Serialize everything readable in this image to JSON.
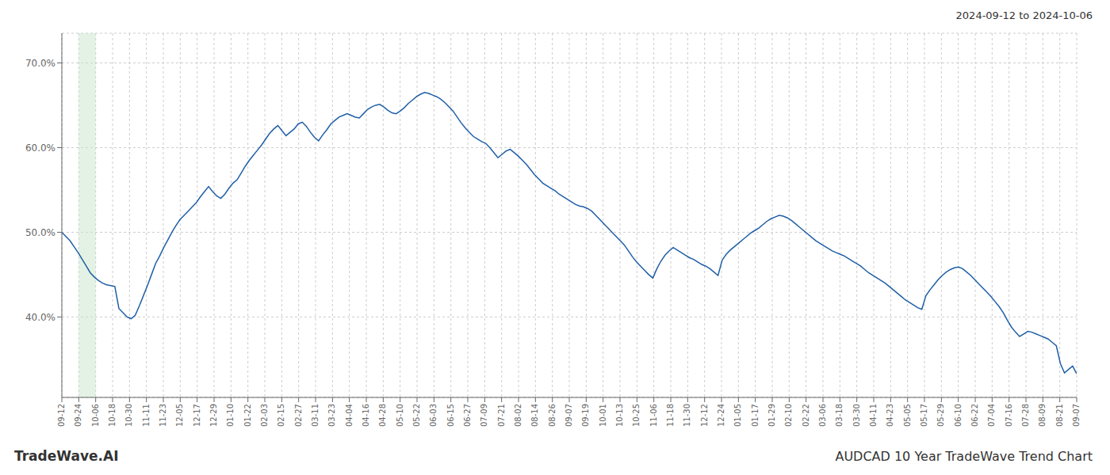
{
  "chart_data": {
    "type": "line",
    "title": "AUDCAD 10 Year TradeWave Trend Chart",
    "subtitle": "2024-09-12 to 2024-10-06",
    "annotations": [
      "TradeWave.AI"
    ],
    "color": "#1f5fa6",
    "grid": true,
    "highlight": {
      "x": [
        4.15,
        8.3
      ],
      "color": "#c8e6c9"
    },
    "xlim": [
      0,
      249
    ],
    "xticks": [
      {
        "value": 0,
        "label": "09-12"
      },
      {
        "value": 4.15,
        "label": "09-24"
      },
      {
        "value": 8.3,
        "label": "10-06"
      },
      {
        "value": 12.45,
        "label": "10-18"
      },
      {
        "value": 16.6,
        "label": "10-30"
      },
      {
        "value": 20.75,
        "label": "11-11"
      },
      {
        "value": 24.9,
        "label": "11-23"
      },
      {
        "value": 29.05,
        "label": "12-05"
      },
      {
        "value": 33.2,
        "label": "12-17"
      },
      {
        "value": 37.35,
        "label": "12-29"
      },
      {
        "value": 41.5,
        "label": "01-10"
      },
      {
        "value": 45.65,
        "label": "01-22"
      },
      {
        "value": 49.8,
        "label": "02-03"
      },
      {
        "value": 53.95,
        "label": "02-15"
      },
      {
        "value": 58.1,
        "label": "02-27"
      },
      {
        "value": 62.25,
        "label": "03-11"
      },
      {
        "value": 66.4,
        "label": "03-23"
      },
      {
        "value": 70.55,
        "label": "04-04"
      },
      {
        "value": 74.7,
        "label": "04-16"
      },
      {
        "value": 78.85,
        "label": "04-28"
      },
      {
        "value": 83,
        "label": "05-10"
      },
      {
        "value": 87.15,
        "label": "05-22"
      },
      {
        "value": 91.3,
        "label": "06-03"
      },
      {
        "value": 95.45,
        "label": "06-15"
      },
      {
        "value": 99.6,
        "label": "06-27"
      },
      {
        "value": 103.75,
        "label": "07-09"
      },
      {
        "value": 107.9,
        "label": "07-21"
      },
      {
        "value": 112.05,
        "label": "08-02"
      },
      {
        "value": 116.2,
        "label": "08-14"
      },
      {
        "value": 120.35,
        "label": "08-26"
      },
      {
        "value": 124.5,
        "label": "09-07"
      },
      {
        "value": 128.65,
        "label": "09-19"
      },
      {
        "value": 132.8,
        "label": "10-01"
      },
      {
        "value": 136.95,
        "label": "10-13"
      },
      {
        "value": 141.1,
        "label": "10-25"
      },
      {
        "value": 145.25,
        "label": "11-06"
      },
      {
        "value": 149.4,
        "label": "11-18"
      },
      {
        "value": 153.55,
        "label": "11-30"
      },
      {
        "value": 157.7,
        "label": "12-12"
      },
      {
        "value": 161.85,
        "label": "12-24"
      },
      {
        "value": 166,
        "label": "01-05"
      },
      {
        "value": 170.15,
        "label": "01-17"
      },
      {
        "value": 174.3,
        "label": "01-29"
      },
      {
        "value": 178.45,
        "label": "02-10"
      },
      {
        "value": 182.6,
        "label": "02-22"
      },
      {
        "value": 186.75,
        "label": "03-06"
      },
      {
        "value": 190.9,
        "label": "03-18"
      },
      {
        "value": 195.05,
        "label": "03-30"
      },
      {
        "value": 199.2,
        "label": "04-11"
      },
      {
        "value": 203.35,
        "label": "04-23"
      },
      {
        "value": 207.5,
        "label": "05-05"
      },
      {
        "value": 211.65,
        "label": "05-17"
      },
      {
        "value": 215.8,
        "label": "05-29"
      },
      {
        "value": 219.95,
        "label": "06-10"
      },
      {
        "value": 224.1,
        "label": "06-22"
      },
      {
        "value": 228.25,
        "label": "07-04"
      },
      {
        "value": 232.4,
        "label": "07-16"
      },
      {
        "value": 236.55,
        "label": "07-28"
      },
      {
        "value": 240.7,
        "label": "08-09"
      },
      {
        "value": 244.85,
        "label": "08-21"
      },
      {
        "value": 249,
        "label": "09-07"
      }
    ],
    "ylim": [
      0.305,
      0.735
    ],
    "yticks": [
      {
        "value": 0.4,
        "label": "40.0%"
      },
      {
        "value": 0.5,
        "label": "50.0%"
      },
      {
        "value": 0.6,
        "label": "60.0%"
      },
      {
        "value": 0.7,
        "label": "70.0%"
      }
    ],
    "x": [
      0,
      1,
      2,
      3,
      4,
      5,
      6,
      7,
      8,
      9,
      10,
      11,
      12,
      13,
      14,
      15,
      16,
      17,
      18,
      19,
      20,
      21,
      22,
      23,
      24,
      25,
      26,
      27,
      28,
      29,
      30,
      31,
      32,
      33,
      34,
      35,
      36,
      37,
      38,
      39,
      40,
      41,
      42,
      43,
      44,
      45,
      46,
      47,
      48,
      49,
      50,
      51,
      52,
      53,
      54,
      55,
      56,
      57,
      58,
      59,
      60,
      61,
      62,
      63,
      64,
      65,
      66,
      67,
      68,
      69,
      70,
      71,
      72,
      73,
      74,
      75,
      76,
      77,
      78,
      79,
      80,
      81,
      82,
      83,
      84,
      85,
      86,
      87,
      88,
      89,
      90,
      91,
      92,
      93,
      94,
      95,
      96,
      97,
      98,
      99,
      100,
      101,
      102,
      103,
      104,
      105,
      106,
      107,
      108,
      109,
      110,
      111,
      112,
      113,
      114,
      115,
      116,
      117,
      118,
      119,
      120,
      121,
      122,
      123,
      124,
      125,
      126,
      127,
      128,
      129,
      130,
      131,
      132,
      133,
      134,
      135,
      136,
      137,
      138,
      139,
      140,
      141,
      142,
      143,
      144,
      145,
      146,
      147,
      148,
      149,
      150,
      151,
      152,
      153,
      154,
      155,
      156,
      157,
      158,
      159,
      160,
      161,
      162,
      163,
      164,
      165,
      166,
      167,
      168,
      169,
      170,
      171,
      172,
      173,
      174,
      175,
      176,
      177,
      178,
      179,
      180,
      181,
      182,
      183,
      184,
      185,
      186,
      187,
      188,
      189,
      190,
      191,
      192,
      193,
      194,
      195,
      196,
      197,
      198,
      199,
      200,
      201,
      202,
      203,
      204,
      205,
      206,
      207,
      208,
      209,
      210,
      211,
      212,
      213,
      214,
      215,
      216,
      217,
      218,
      219,
      220,
      221,
      222,
      223,
      224,
      225,
      226,
      227,
      228,
      229,
      230,
      231,
      232,
      233,
      234,
      235,
      236,
      237,
      238,
      239,
      240,
      241,
      242,
      243,
      244,
      245,
      246,
      247,
      248,
      249
    ],
    "values": [
      0.5,
      0.495,
      0.49,
      0.483,
      0.476,
      0.468,
      0.46,
      0.452,
      0.447,
      0.443,
      0.44,
      0.438,
      0.437,
      0.436,
      0.41,
      0.405,
      0.4,
      0.398,
      0.402,
      0.413,
      0.425,
      0.437,
      0.45,
      0.463,
      0.472,
      0.482,
      0.491,
      0.5,
      0.508,
      0.515,
      0.52,
      0.525,
      0.53,
      0.535,
      0.542,
      0.548,
      0.554,
      0.548,
      0.543,
      0.54,
      0.545,
      0.552,
      0.558,
      0.562,
      0.57,
      0.578,
      0.585,
      0.591,
      0.597,
      0.603,
      0.61,
      0.617,
      0.622,
      0.626,
      0.62,
      0.614,
      0.618,
      0.622,
      0.628,
      0.63,
      0.625,
      0.618,
      0.612,
      0.608,
      0.615,
      0.621,
      0.628,
      0.632,
      0.636,
      0.638,
      0.64,
      0.638,
      0.636,
      0.635,
      0.64,
      0.645,
      0.648,
      0.65,
      0.651,
      0.648,
      0.644,
      0.641,
      0.64,
      0.643,
      0.647,
      0.652,
      0.656,
      0.66,
      0.663,
      0.665,
      0.664,
      0.662,
      0.66,
      0.657,
      0.653,
      0.648,
      0.643,
      0.636,
      0.629,
      0.623,
      0.618,
      0.613,
      0.61,
      0.607,
      0.605,
      0.6,
      0.594,
      0.588,
      0.592,
      0.596,
      0.598,
      0.594,
      0.59,
      0.585,
      0.58,
      0.574,
      0.568,
      0.563,
      0.558,
      0.555,
      0.552,
      0.549,
      0.545,
      0.542,
      0.539,
      0.536,
      0.533,
      0.531,
      0.53,
      0.528,
      0.525,
      0.52,
      0.515,
      0.51,
      0.505,
      0.5,
      0.495,
      0.49,
      0.485,
      0.478,
      0.471,
      0.465,
      0.46,
      0.455,
      0.45,
      0.446,
      0.457,
      0.466,
      0.473,
      0.478,
      0.482,
      0.479,
      0.476,
      0.473,
      0.47,
      0.468,
      0.465,
      0.462,
      0.46,
      0.457,
      0.453,
      0.449,
      0.467,
      0.474,
      0.479,
      0.483,
      0.487,
      0.491,
      0.495,
      0.499,
      0.502,
      0.505,
      0.509,
      0.513,
      0.516,
      0.518,
      0.52,
      0.519,
      0.517,
      0.514,
      0.51,
      0.506,
      0.502,
      0.498,
      0.494,
      0.49,
      0.487,
      0.484,
      0.481,
      0.478,
      0.476,
      0.474,
      0.472,
      0.469,
      0.466,
      0.463,
      0.46,
      0.456,
      0.452,
      0.449,
      0.446,
      0.443,
      0.44,
      0.436,
      0.432,
      0.428,
      0.424,
      0.42,
      0.417,
      0.414,
      0.411,
      0.409,
      0.425,
      0.432,
      0.438,
      0.444,
      0.449,
      0.453,
      0.456,
      0.458,
      0.459,
      0.457,
      0.453,
      0.449,
      0.444,
      0.439,
      0.434,
      0.429,
      0.424,
      0.418,
      0.412,
      0.405,
      0.396,
      0.388,
      0.382,
      0.377,
      0.38,
      0.383,
      0.382,
      0.38,
      0.378,
      0.376,
      0.374,
      0.37,
      0.366,
      0.345,
      0.334,
      0.338,
      0.342,
      0.333
    ]
  }
}
